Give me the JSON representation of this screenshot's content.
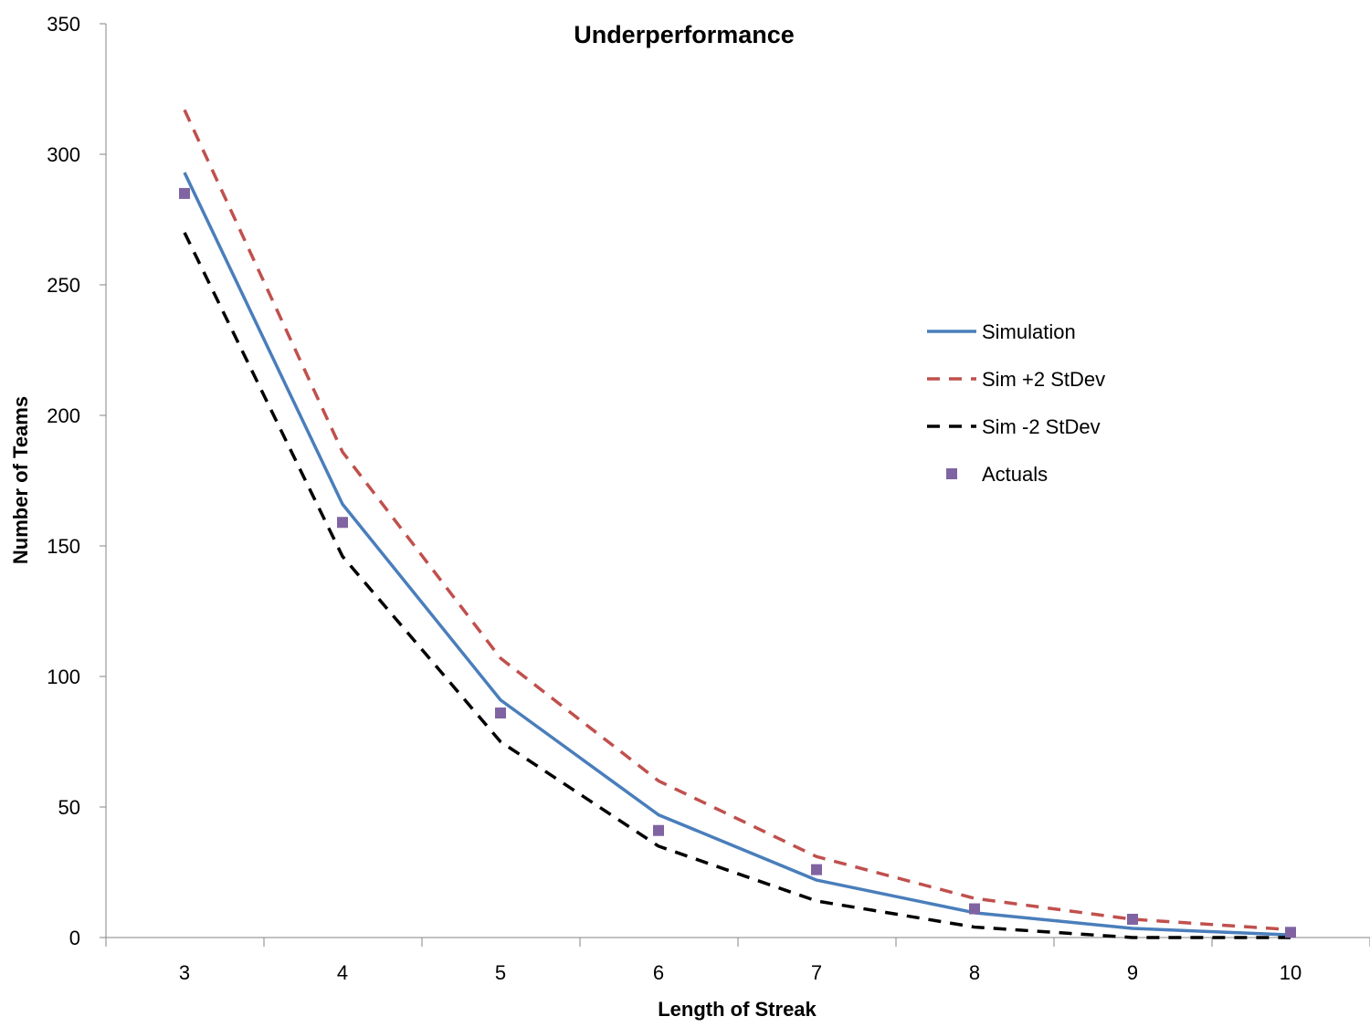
{
  "chart_data": {
    "type": "line",
    "title": "Underperformance",
    "xlabel": "Length of Streak",
    "ylabel": "Number of Teams",
    "x": [
      3,
      4,
      5,
      6,
      7,
      8,
      9,
      10
    ],
    "ylim": [
      0,
      350
    ],
    "yticks": [
      0,
      50,
      100,
      150,
      200,
      250,
      300,
      350
    ],
    "grid": false,
    "legend_position": "right",
    "series": [
      {
        "name": "Simulation",
        "kind": "line",
        "style": "solid",
        "color": "#4a7ebb",
        "values": [
          293,
          166,
          91,
          47,
          22,
          9.5,
          3.5,
          1
        ]
      },
      {
        "name": "Sim +2 StDev",
        "kind": "line",
        "style": "dashed",
        "color": "#c0504d",
        "values": [
          317,
          186,
          107,
          60,
          31,
          15,
          7,
          3
        ]
      },
      {
        "name": "Sim -2 StDev",
        "kind": "line",
        "style": "dashed",
        "color": "#000000",
        "values": [
          270,
          146,
          75,
          35,
          14,
          4,
          0,
          0
        ]
      },
      {
        "name": "Actuals",
        "kind": "marker",
        "style": "square",
        "color": "#8064a2",
        "values": [
          285,
          159,
          86,
          41,
          26,
          11,
          7,
          2
        ]
      }
    ]
  }
}
